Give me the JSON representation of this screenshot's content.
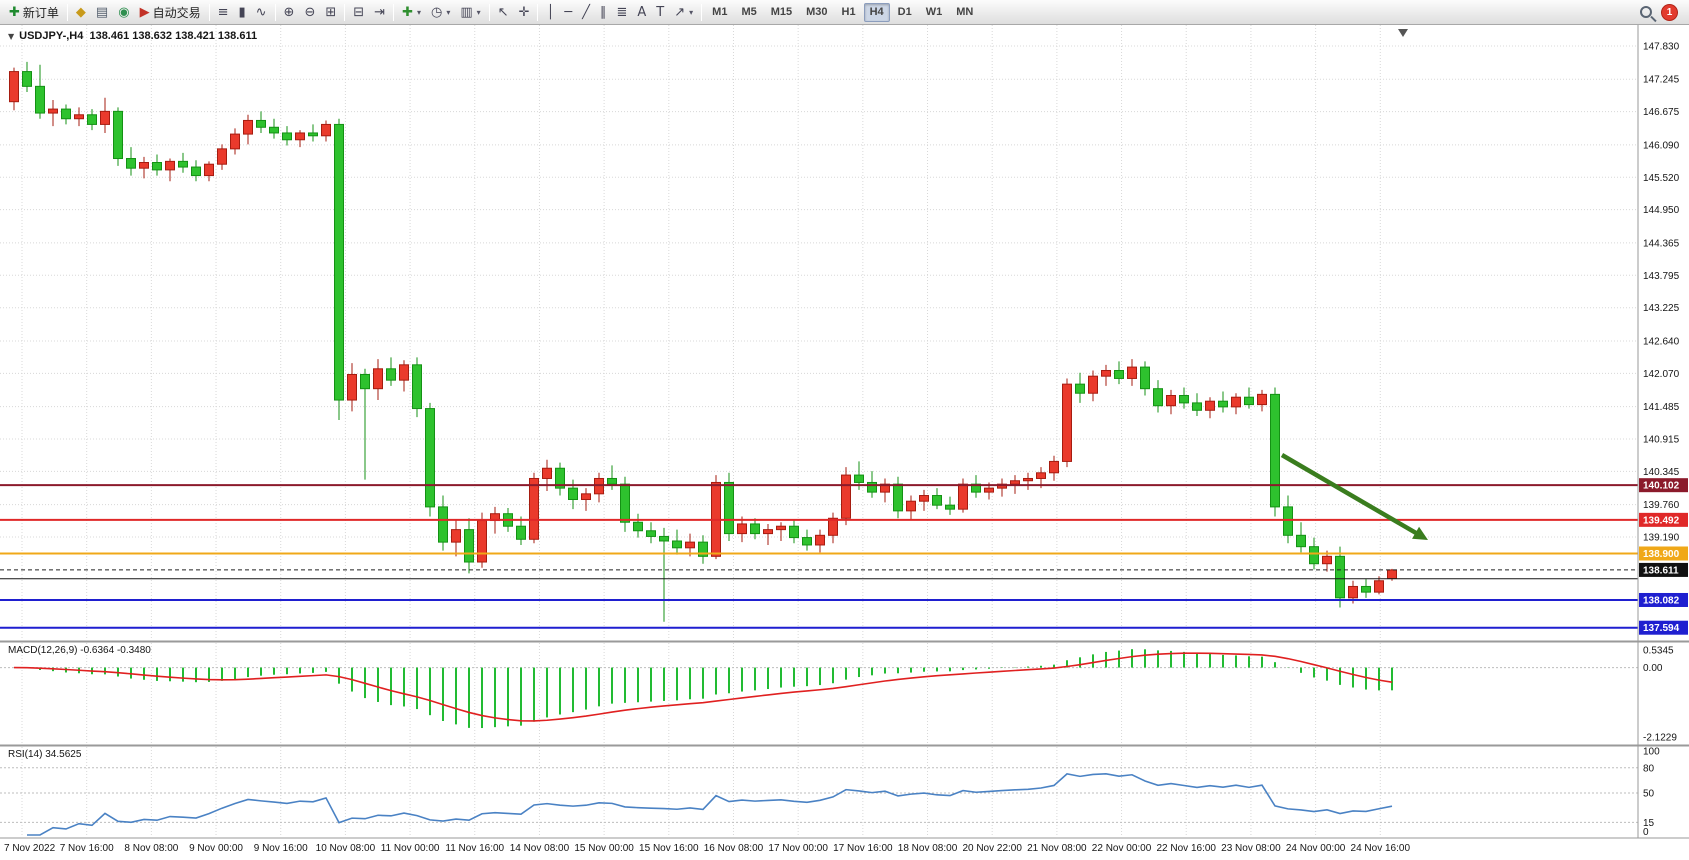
{
  "toolbar": {
    "notification_count": "1",
    "timeframes": [
      "M1",
      "M5",
      "M15",
      "M30",
      "H1",
      "H4",
      "D1",
      "W1",
      "MN"
    ],
    "active_timeframe": "H4",
    "groups": [
      {
        "items": [
          {
            "name": "new-order-button",
            "glyph": "✚",
            "glyph_color": "#1f8a2f",
            "label": "新订单"
          }
        ]
      },
      {
        "items": [
          {
            "name": "navigator-icon",
            "glyph": "◆",
            "glyph_color": "#c89a1b"
          },
          {
            "name": "print-icon",
            "glyph": "▤",
            "glyph_color": "#55606e"
          },
          {
            "name": "data-window-icon",
            "glyph": "◉",
            "glyph_color": "#2f8f4f"
          },
          {
            "name": "autotrading-button",
            "glyph": "▶",
            "glyph_color": "#c23227",
            "label": "自动交易"
          }
        ]
      },
      {
        "items": [
          {
            "name": "bar-chart-button",
            "glyph": "≡"
          },
          {
            "name": "candlestick-chart-button",
            "glyph": "▮"
          },
          {
            "name": "line-chart-button",
            "glyph": "∿"
          }
        ]
      },
      {
        "items": [
          {
            "name": "zoom-in-button",
            "glyph": "⊕"
          },
          {
            "name": "zoom-out-button",
            "glyph": "⊖"
          },
          {
            "name": "tile-windows-button",
            "glyph": "⊞"
          }
        ]
      },
      {
        "items": [
          {
            "name": "auto-scroll-button",
            "glyph": "⊟"
          },
          {
            "name": "chart-shift-button",
            "glyph": "⇥"
          }
        ]
      },
      {
        "items": [
          {
            "name": "indicators-button",
            "glyph": "✚",
            "glyph_color": "#2f8f2f",
            "dropdown": true
          },
          {
            "name": "periods-dropdown",
            "glyph": "◷",
            "dropdown": true
          },
          {
            "name": "templates-dropdown",
            "glyph": "▥",
            "dropdown": true
          }
        ]
      },
      {
        "items": [
          {
            "name": "cursor-button",
            "glyph": "↖"
          },
          {
            "name": "crosshair-button",
            "glyph": "✛"
          }
        ]
      },
      {
        "items": [
          {
            "name": "vertical-line-button",
            "glyph": "│"
          },
          {
            "name": "horizontal-line-button",
            "glyph": "─"
          },
          {
            "name": "trendline-button",
            "glyph": "╱"
          },
          {
            "name": "equidistant-channel-button",
            "glyph": "∥"
          },
          {
            "name": "fibonacci-button",
            "glyph": "≣"
          },
          {
            "name": "text-button",
            "glyph": "A"
          },
          {
            "name": "text-label-button",
            "glyph": "T"
          },
          {
            "name": "arrows-dropdown",
            "glyph": "↗",
            "dropdown": true
          }
        ]
      }
    ]
  },
  "chart": {
    "symbol_info": "USDJPY-,H4  138.461 138.632 138.421 138.611",
    "collapse_icon": "▼",
    "price_axis_labels": [
      "147.830",
      "147.245",
      "146.675",
      "146.090",
      "145.520",
      "144.950",
      "144.365",
      "143.795",
      "143.225",
      "142.640",
      "142.070",
      "141.485",
      "140.915",
      "140.345",
      "139.760",
      "139.190"
    ],
    "time_axis_labels": [
      "7 Nov 2022",
      "7 Nov 16:00",
      "8 Nov 08:00",
      "9 Nov 00:00",
      "9 Nov 16:00",
      "10 Nov 08:00",
      "11 Nov 00:00",
      "11 Nov 16:00",
      "14 Nov 08:00",
      "15 Nov 00:00",
      "15 Nov 16:00",
      "16 Nov 08:00",
      "17 Nov 00:00",
      "17 Nov 16:00",
      "18 Nov 08:00",
      "20 Nov 22:00",
      "21 Nov 08:00",
      "22 Nov 00:00",
      "22 Nov 16:00",
      "23 Nov 08:00",
      "24 Nov 00:00",
      "24 Nov 16:00"
    ],
    "hlines": [
      {
        "price": 140.102,
        "tag": "140.102",
        "color": "#8b1a2b",
        "width": 2,
        "dash": null
      },
      {
        "price": 139.492,
        "tag": "139.492",
        "color": "#e02828",
        "width": 2,
        "dash": null
      },
      {
        "price": 138.9,
        "tag": "138.900",
        "color": "#f0a818",
        "width": 2,
        "dash": null
      },
      {
        "price": 138.455,
        "tag": null,
        "color": "#151515",
        "width": 1,
        "dash": null
      },
      {
        "price": 138.611,
        "tag": "138.611",
        "color": "#222222",
        "width": 1,
        "dash": "4,3",
        "tag_color": "#111111"
      },
      {
        "price": 138.082,
        "tag": "138.082",
        "color": "#1f1fd0",
        "width": 2,
        "dash": null
      },
      {
        "price": 137.594,
        "tag": "137.594",
        "color": "#1f1fd0",
        "width": 2,
        "dash": null
      }
    ],
    "arrow": {
      "from": [
        1282,
        455
      ],
      "to": [
        1428,
        540
      ],
      "color": "#3a7d1e"
    }
  },
  "chart_data": {
    "type": "candlestick",
    "symbol": "USDJPY-",
    "timeframe": "H4",
    "ohlc_readout": {
      "open": "138.461",
      "high": "138.632",
      "low": "138.421",
      "close": "138.611"
    },
    "up_color": "#ea3a2c",
    "down_color": "#2ec22e",
    "candles": [
      [
        146.85,
        147.45,
        146.7,
        147.38
      ],
      [
        147.38,
        147.55,
        147.02,
        147.12
      ],
      [
        147.12,
        147.5,
        146.55,
        146.65
      ],
      [
        146.65,
        146.88,
        146.42,
        146.72
      ],
      [
        146.72,
        146.8,
        146.45,
        146.55
      ],
      [
        146.55,
        146.75,
        146.42,
        146.62
      ],
      [
        146.62,
        146.72,
        146.35,
        146.45
      ],
      [
        146.45,
        146.92,
        146.3,
        146.68
      ],
      [
        146.68,
        146.75,
        145.72,
        145.85
      ],
      [
        145.85,
        146.05,
        145.55,
        145.68
      ],
      [
        145.68,
        145.88,
        145.5,
        145.78
      ],
      [
        145.78,
        145.92,
        145.55,
        145.65
      ],
      [
        145.65,
        145.85,
        145.45,
        145.8
      ],
      [
        145.8,
        145.95,
        145.6,
        145.7
      ],
      [
        145.7,
        145.82,
        145.45,
        145.55
      ],
      [
        145.55,
        145.8,
        145.45,
        145.75
      ],
      [
        145.75,
        146.1,
        145.65,
        146.02
      ],
      [
        146.02,
        146.38,
        145.92,
        146.28
      ],
      [
        146.28,
        146.62,
        146.1,
        146.52
      ],
      [
        146.52,
        146.68,
        146.3,
        146.4
      ],
      [
        146.4,
        146.55,
        146.2,
        146.3
      ],
      [
        146.3,
        146.42,
        146.08,
        146.18
      ],
      [
        146.18,
        146.35,
        146.05,
        146.3
      ],
      [
        146.3,
        146.45,
        146.15,
        146.25
      ],
      [
        146.25,
        146.52,
        146.15,
        146.45
      ],
      [
        146.45,
        146.55,
        141.25,
        141.6
      ],
      [
        141.6,
        142.25,
        141.4,
        142.05
      ],
      [
        142.05,
        142.15,
        140.2,
        141.8
      ],
      [
        141.8,
        142.32,
        141.6,
        142.15
      ],
      [
        142.15,
        142.35,
        141.85,
        141.95
      ],
      [
        141.95,
        142.3,
        141.75,
        142.22
      ],
      [
        142.22,
        142.35,
        141.3,
        141.45
      ],
      [
        141.45,
        141.55,
        139.55,
        139.72
      ],
      [
        139.72,
        139.92,
        138.95,
        139.1
      ],
      [
        139.1,
        139.48,
        138.85,
        139.32
      ],
      [
        139.32,
        139.52,
        138.55,
        138.75
      ],
      [
        138.75,
        139.62,
        138.65,
        139.48
      ],
      [
        139.48,
        139.72,
        139.25,
        139.6
      ],
      [
        139.6,
        139.7,
        139.28,
        139.38
      ],
      [
        139.38,
        139.55,
        139.05,
        139.15
      ],
      [
        139.15,
        140.32,
        139.08,
        140.22
      ],
      [
        140.22,
        140.55,
        140.0,
        140.4
      ],
      [
        140.4,
        140.5,
        139.92,
        140.05
      ],
      [
        140.05,
        140.2,
        139.68,
        139.85
      ],
      [
        139.85,
        140.05,
        139.65,
        139.95
      ],
      [
        139.95,
        140.32,
        139.8,
        140.22
      ],
      [
        140.22,
        140.45,
        140.02,
        140.12
      ],
      [
        140.12,
        140.25,
        139.28,
        139.45
      ],
      [
        139.45,
        139.6,
        139.18,
        139.3
      ],
      [
        139.3,
        139.45,
        139.08,
        139.2
      ],
      [
        139.2,
        139.35,
        137.7,
        139.12
      ],
      [
        139.12,
        139.32,
        138.88,
        139.0
      ],
      [
        139.0,
        139.25,
        138.85,
        139.1
      ],
      [
        139.1,
        139.22,
        138.72,
        138.85
      ],
      [
        138.85,
        140.28,
        138.8,
        140.15
      ],
      [
        140.15,
        140.32,
        139.12,
        139.25
      ],
      [
        139.25,
        139.55,
        139.1,
        139.42
      ],
      [
        139.42,
        139.52,
        139.15,
        139.25
      ],
      [
        139.25,
        139.42,
        139.05,
        139.32
      ],
      [
        139.32,
        139.45,
        139.12,
        139.38
      ],
      [
        139.38,
        139.48,
        139.08,
        139.18
      ],
      [
        139.18,
        139.32,
        138.95,
        139.05
      ],
      [
        139.05,
        139.32,
        138.92,
        139.22
      ],
      [
        139.22,
        139.62,
        139.08,
        139.52
      ],
      [
        139.52,
        140.42,
        139.4,
        140.28
      ],
      [
        140.28,
        140.52,
        140.02,
        140.15
      ],
      [
        140.15,
        140.35,
        139.88,
        139.98
      ],
      [
        139.98,
        140.22,
        139.8,
        140.12
      ],
      [
        140.12,
        140.25,
        139.52,
        139.65
      ],
      [
        139.65,
        139.92,
        139.48,
        139.82
      ],
      [
        139.82,
        140.02,
        139.65,
        139.92
      ],
      [
        139.92,
        140.05,
        139.68,
        139.75
      ],
      [
        139.75,
        139.9,
        139.58,
        139.68
      ],
      [
        139.68,
        140.22,
        139.62,
        140.12
      ],
      [
        140.12,
        140.28,
        139.88,
        139.98
      ],
      [
        139.98,
        140.15,
        139.85,
        140.05
      ],
      [
        140.05,
        140.22,
        139.9,
        140.12
      ],
      [
        140.12,
        140.28,
        139.95,
        140.18
      ],
      [
        140.18,
        140.32,
        140.02,
        140.22
      ],
      [
        140.22,
        140.42,
        140.05,
        140.32
      ],
      [
        140.32,
        140.62,
        140.18,
        140.52
      ],
      [
        140.52,
        141.98,
        140.42,
        141.88
      ],
      [
        141.88,
        142.08,
        141.55,
        141.72
      ],
      [
        141.72,
        142.12,
        141.58,
        142.02
      ],
      [
        142.02,
        142.22,
        141.85,
        142.12
      ],
      [
        142.12,
        142.28,
        141.88,
        141.98
      ],
      [
        141.98,
        142.32,
        141.85,
        142.18
      ],
      [
        142.18,
        142.28,
        141.68,
        141.8
      ],
      [
        141.8,
        141.95,
        141.38,
        141.5
      ],
      [
        141.5,
        141.78,
        141.35,
        141.68
      ],
      [
        141.68,
        141.82,
        141.45,
        141.55
      ],
      [
        141.55,
        141.72,
        141.32,
        141.42
      ],
      [
        141.42,
        141.65,
        141.28,
        141.58
      ],
      [
        141.58,
        141.75,
        141.38,
        141.48
      ],
      [
        141.48,
        141.72,
        141.35,
        141.65
      ],
      [
        141.65,
        141.82,
        141.45,
        141.52
      ],
      [
        141.52,
        141.78,
        141.4,
        141.7
      ],
      [
        141.7,
        141.82,
        139.55,
        139.72
      ],
      [
        139.72,
        139.92,
        139.08,
        139.22
      ],
      [
        139.22,
        139.45,
        138.92,
        139.02
      ],
      [
        139.02,
        139.18,
        138.62,
        138.72
      ],
      [
        138.72,
        138.95,
        138.58,
        138.85
      ],
      [
        138.85,
        139.02,
        137.95,
        138.12
      ],
      [
        138.12,
        138.42,
        138.02,
        138.32
      ],
      [
        138.32,
        138.45,
        138.12,
        138.22
      ],
      [
        138.22,
        138.5,
        138.18,
        138.42
      ],
      [
        138.46,
        138.63,
        138.42,
        138.61
      ]
    ]
  },
  "indicators": {
    "macd": {
      "label": "MACD(12,26,9) -0.6364 -0.3480",
      "params": [
        12,
        26,
        9
      ],
      "value": "-0.6364",
      "signal_value": "-0.3480",
      "histogram_color": "#22bb33",
      "signal_color": "#e02020",
      "ylim": [
        -2.25,
        0.6
      ],
      "axis": [
        {
          "label": "0.5345",
          "value": 0.5345
        },
        {
          "label": "0.00",
          "value": 0
        },
        {
          "label": "-2.1229",
          "value": -2.1229
        }
      ]
    },
    "rsi": {
      "label": "RSI(14) 34.5625",
      "period": 14,
      "value": "34.5625",
      "line_color": "#4a82c4",
      "levels": [
        80,
        50,
        15
      ],
      "ylim": [
        0,
        100
      ],
      "axis": [
        {
          "label": "100",
          "value": 100
        },
        {
          "label": "80",
          "value": 80
        },
        {
          "label": "50",
          "value": 50
        },
        {
          "label": "15",
          "value": 15
        },
        {
          "label": "0",
          "value": 0
        }
      ]
    }
  }
}
